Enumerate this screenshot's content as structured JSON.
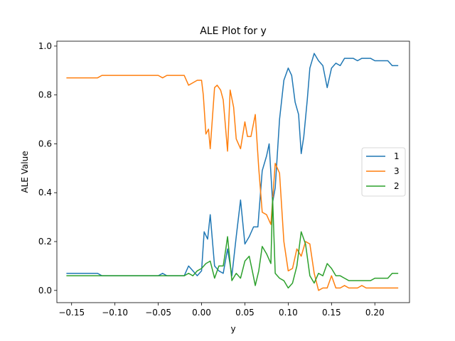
{
  "chart_data": {
    "type": "line",
    "title": "ALE Plot for y",
    "xlabel": "y",
    "ylabel": "ALE Value",
    "xlim": [
      -0.167,
      0.24
    ],
    "ylim": [
      -0.05,
      1.02
    ],
    "xticks": [
      -0.15,
      -0.1,
      -0.05,
      0.0,
      0.05,
      0.1,
      0.15,
      0.2
    ],
    "xtick_labels": [
      "−0.15",
      "−0.10",
      "−0.05",
      "0.00",
      "0.05",
      "0.10",
      "0.15",
      "0.20"
    ],
    "yticks": [
      0.0,
      0.2,
      0.4,
      0.6,
      0.8,
      1.0
    ],
    "ytick_labels": [
      "0.0",
      "0.2",
      "0.4",
      "0.6",
      "0.8",
      "1.0"
    ],
    "grid": false,
    "legend_position": "center-right",
    "series": [
      {
        "name": "1",
        "color": "#1f77b4",
        "x": [
          -0.156,
          -0.12,
          -0.115,
          -0.05,
          -0.045,
          -0.04,
          -0.02,
          -0.015,
          -0.01,
          -0.005,
          0.0,
          0.003,
          0.007,
          0.01,
          0.015,
          0.02,
          0.025,
          0.03,
          0.035,
          0.04,
          0.045,
          0.05,
          0.055,
          0.06,
          0.065,
          0.07,
          0.075,
          0.078,
          0.082,
          0.085,
          0.09,
          0.095,
          0.1,
          0.104,
          0.108,
          0.112,
          0.115,
          0.118,
          0.122,
          0.125,
          0.13,
          0.135,
          0.14,
          0.145,
          0.15,
          0.155,
          0.16,
          0.165,
          0.17,
          0.175,
          0.18,
          0.185,
          0.19,
          0.195,
          0.2,
          0.205,
          0.21,
          0.215,
          0.22,
          0.227
        ],
        "y": [
          0.07,
          0.07,
          0.06,
          0.06,
          0.07,
          0.06,
          0.06,
          0.1,
          0.08,
          0.06,
          0.08,
          0.24,
          0.21,
          0.31,
          0.1,
          0.08,
          0.07,
          0.17,
          0.06,
          0.22,
          0.37,
          0.19,
          0.22,
          0.26,
          0.26,
          0.49,
          0.55,
          0.6,
          0.36,
          0.42,
          0.7,
          0.86,
          0.91,
          0.88,
          0.77,
          0.72,
          0.56,
          0.63,
          0.78,
          0.91,
          0.97,
          0.94,
          0.92,
          0.83,
          0.91,
          0.93,
          0.92,
          0.95,
          0.95,
          0.95,
          0.94,
          0.95,
          0.95,
          0.95,
          0.94,
          0.94,
          0.94,
          0.94,
          0.92,
          0.92
        ]
      },
      {
        "name": "3",
        "color": "#ff7f0e",
        "x": [
          -0.156,
          -0.12,
          -0.115,
          -0.05,
          -0.045,
          -0.04,
          -0.02,
          -0.015,
          -0.01,
          -0.005,
          0.0,
          0.002,
          0.005,
          0.008,
          0.01,
          0.015,
          0.018,
          0.022,
          0.025,
          0.03,
          0.033,
          0.037,
          0.04,
          0.045,
          0.05,
          0.053,
          0.057,
          0.062,
          0.066,
          0.07,
          0.075,
          0.08,
          0.085,
          0.09,
          0.095,
          0.1,
          0.105,
          0.11,
          0.115,
          0.12,
          0.125,
          0.13,
          0.135,
          0.14,
          0.145,
          0.15,
          0.155,
          0.16,
          0.165,
          0.17,
          0.175,
          0.18,
          0.185,
          0.19,
          0.195,
          0.2,
          0.205,
          0.21,
          0.215,
          0.22,
          0.227
        ],
        "y": [
          0.87,
          0.87,
          0.88,
          0.88,
          0.87,
          0.88,
          0.88,
          0.84,
          0.85,
          0.86,
          0.86,
          0.8,
          0.64,
          0.66,
          0.58,
          0.83,
          0.84,
          0.82,
          0.78,
          0.57,
          0.82,
          0.75,
          0.62,
          0.58,
          0.69,
          0.63,
          0.63,
          0.72,
          0.5,
          0.32,
          0.31,
          0.27,
          0.52,
          0.48,
          0.2,
          0.08,
          0.09,
          0.17,
          0.14,
          0.2,
          0.19,
          0.07,
          0.0,
          0.01,
          0.01,
          0.06,
          0.01,
          0.01,
          0.02,
          0.01,
          0.01,
          0.01,
          0.02,
          0.01,
          0.01,
          0.01,
          0.01,
          0.01,
          0.01,
          0.01,
          0.01
        ]
      },
      {
        "name": "2",
        "color": "#2ca02c",
        "x": [
          -0.156,
          -0.12,
          -0.115,
          -0.05,
          -0.045,
          -0.04,
          -0.02,
          -0.015,
          -0.01,
          -0.005,
          0.0,
          0.005,
          0.01,
          0.015,
          0.02,
          0.025,
          0.028,
          0.03,
          0.035,
          0.04,
          0.045,
          0.05,
          0.055,
          0.058,
          0.062,
          0.066,
          0.07,
          0.075,
          0.08,
          0.082,
          0.085,
          0.09,
          0.095,
          0.1,
          0.105,
          0.11,
          0.115,
          0.12,
          0.125,
          0.13,
          0.135,
          0.14,
          0.145,
          0.15,
          0.155,
          0.16,
          0.165,
          0.17,
          0.175,
          0.18,
          0.185,
          0.19,
          0.195,
          0.2,
          0.205,
          0.21,
          0.215,
          0.22,
          0.227
        ],
        "y": [
          0.06,
          0.06,
          0.06,
          0.06,
          0.06,
          0.06,
          0.06,
          0.07,
          0.06,
          0.08,
          0.09,
          0.11,
          0.12,
          0.05,
          0.1,
          0.1,
          0.17,
          0.22,
          0.04,
          0.07,
          0.05,
          0.12,
          0.14,
          0.09,
          0.02,
          0.08,
          0.18,
          0.15,
          0.11,
          0.38,
          0.07,
          0.05,
          0.04,
          0.01,
          0.03,
          0.1,
          0.24,
          0.19,
          0.06,
          0.03,
          0.07,
          0.06,
          0.11,
          0.09,
          0.06,
          0.06,
          0.05,
          0.04,
          0.04,
          0.04,
          0.04,
          0.04,
          0.04,
          0.05,
          0.05,
          0.05,
          0.05,
          0.07,
          0.07
        ]
      }
    ]
  }
}
